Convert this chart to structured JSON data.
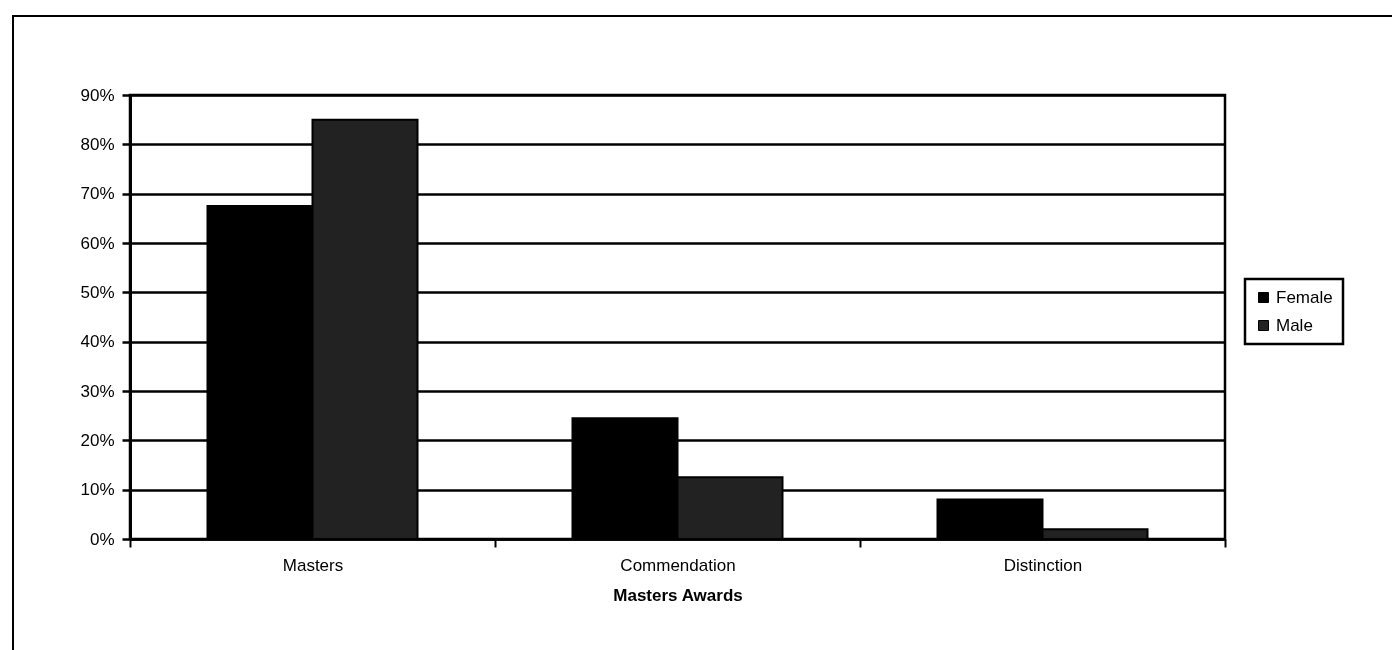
{
  "chart_data": {
    "type": "bar",
    "xlabel": "Masters Awards",
    "categories": [
      "Masters",
      "Commendation",
      "Distinction"
    ],
    "series": [
      {
        "name": "Female",
        "color": "#000000",
        "values": [
          67.5,
          24.5,
          8
        ]
      },
      {
        "name": "Male",
        "color": "#222222",
        "values": [
          85,
          12.5,
          2
        ]
      }
    ],
    "ylim": [
      0,
      90
    ],
    "yticks": [
      {
        "value": 0,
        "label": "0%"
      },
      {
        "value": 10,
        "label": "10%"
      },
      {
        "value": 20,
        "label": "20%"
      },
      {
        "value": 30,
        "label": "30%"
      },
      {
        "value": 40,
        "label": "40%"
      },
      {
        "value": 50,
        "label": "50%"
      },
      {
        "value": 60,
        "label": "60%"
      },
      {
        "value": 70,
        "label": "70%"
      },
      {
        "value": 80,
        "label": "80%"
      },
      {
        "value": 90,
        "label": "90%"
      }
    ],
    "grid": "y",
    "legend": "right"
  }
}
